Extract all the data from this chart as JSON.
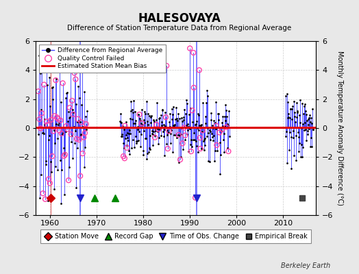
{
  "title": "HALESOVAYA",
  "subtitle": "Difference of Station Temperature Data from Regional Average",
  "ylabel": "Monthly Temperature Anomaly Difference (°C)",
  "xlabel_text": "Berkeley Earth",
  "ylim": [
    -6,
    6
  ],
  "xlim": [
    1957,
    2017
  ],
  "yticks": [
    -6,
    -4,
    -2,
    0,
    2,
    4,
    6
  ],
  "xticks": [
    1960,
    1970,
    1980,
    1990,
    2000,
    2010
  ],
  "bias_value": 0.05,
  "background_color": "#e8e8e8",
  "plot_bg_color": "#ffffff",
  "line_color": "#4444ff",
  "dot_color": "#000000",
  "bias_color": "#dd0000",
  "qc_color": "#ff44aa",
  "station_move_color": "#cc0000",
  "record_gap_color": "#008800",
  "obs_change_color": "#2222cc",
  "empirical_break_color": "#444444",
  "grid_color": "#cccccc",
  "seed": 7,
  "segment_1_start": 1957.5,
  "segment_1_end": 1968.0,
  "segment_2_start": 1975.0,
  "segment_2_end": 1998.5,
  "segment_3_start": 2010.5,
  "segment_3_end": 2016.5,
  "station_moves": [
    1960.2
  ],
  "record_gaps": [
    1969.5,
    1974.0
  ],
  "obs_changes": [
    1966.5,
    1991.5
  ],
  "empirical_breaks": [
    2014.0
  ],
  "marker_y": -4.8,
  "event_vline_color_sm": "#cc0000",
  "event_vline_color_rg": "#008800",
  "event_vline_color_oc": "#4444ff"
}
